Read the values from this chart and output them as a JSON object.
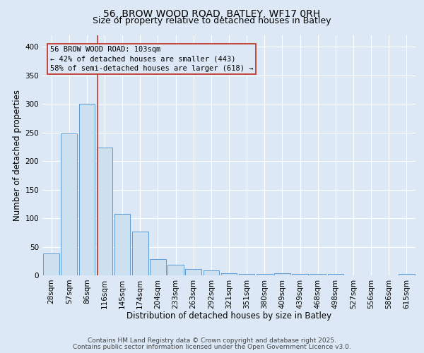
{
  "title": "56, BROW WOOD ROAD, BATLEY, WF17 0RH",
  "subtitle": "Size of property relative to detached houses in Batley",
  "xlabel": "Distribution of detached houses by size in Batley",
  "ylabel": "Number of detached properties",
  "bar_labels": [
    "28sqm",
    "57sqm",
    "86sqm",
    "116sqm",
    "145sqm",
    "174sqm",
    "204sqm",
    "233sqm",
    "263sqm",
    "292sqm",
    "321sqm",
    "351sqm",
    "380sqm",
    "409sqm",
    "439sqm",
    "468sqm",
    "498sqm",
    "527sqm",
    "556sqm",
    "586sqm",
    "615sqm"
  ],
  "bar_values": [
    38,
    248,
    300,
    224,
    107,
    77,
    29,
    18,
    11,
    9,
    4,
    3,
    3,
    4,
    2,
    2,
    2,
    0,
    0,
    0,
    3
  ],
  "bar_color": "#cce0f0",
  "bar_edge_color": "#5b9bd5",
  "vline_x_index": 2.62,
  "vline_color": "#c0392b",
  "annotation_text": "56 BROW WOOD ROAD: 103sqm\n← 42% of detached houses are smaller (443)\n58% of semi-detached houses are larger (618) →",
  "annotation_box_color": "#c0392b",
  "ylim": [
    0,
    420
  ],
  "yticks": [
    0,
    50,
    100,
    150,
    200,
    250,
    300,
    350,
    400
  ],
  "background_color": "#dce8f5",
  "grid_color": "#ffffff",
  "footer_line1": "Contains HM Land Registry data © Crown copyright and database right 2025.",
  "footer_line2": "Contains public sector information licensed under the Open Government Licence v3.0.",
  "title_fontsize": 10,
  "subtitle_fontsize": 9,
  "axis_label_fontsize": 8.5,
  "tick_fontsize": 7.5,
  "annotation_fontsize": 7.5,
  "footer_fontsize": 6.5
}
